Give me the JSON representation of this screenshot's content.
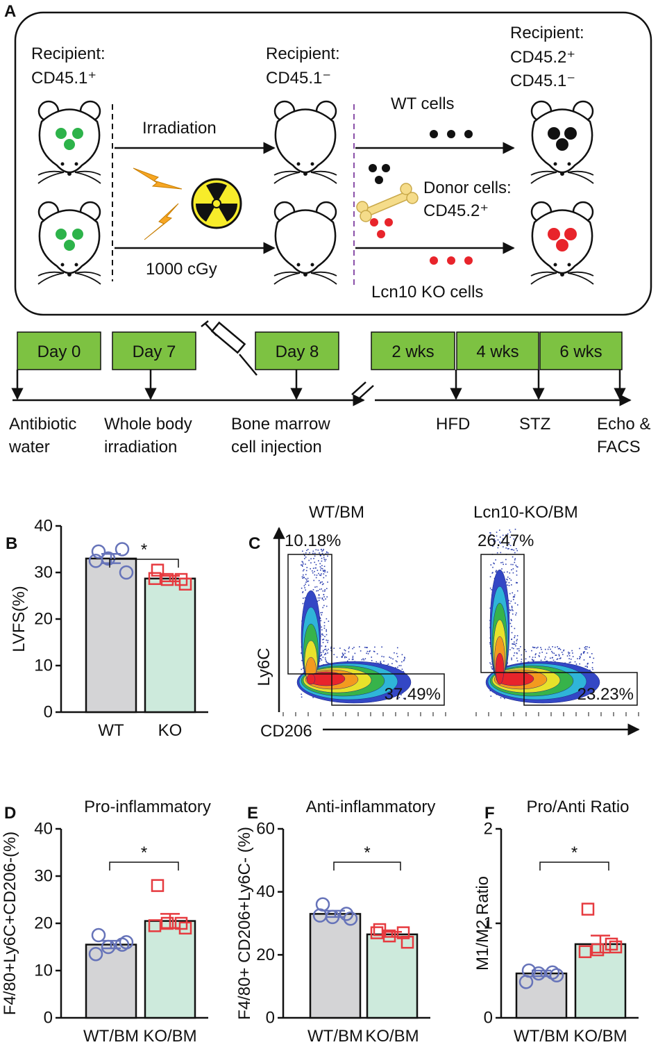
{
  "panel_labels": [
    "A",
    "B",
    "C",
    "D",
    "E",
    "F"
  ],
  "diagram": {
    "recipient_1": [
      "Recipient:",
      "CD45.1⁺"
    ],
    "recipient_2": [
      "Recipient:",
      "CD45.1⁻"
    ],
    "recipient_3": [
      "Recipient:",
      "CD45.2⁺",
      "CD45.1⁻"
    ],
    "irradiation": "Irradiation",
    "dose": "1000 cGy",
    "wt_cells": "WT cells",
    "donor_cells": [
      "Donor cells:",
      "CD45.2⁺"
    ],
    "ko_cells": "Lcn10 KO cells"
  },
  "timeline": {
    "steps": [
      "Day 0",
      "Day 7",
      "Day 8",
      "2 wks",
      "4 wks",
      "6 wks"
    ],
    "events": [
      [
        "Antibiotic",
        "water"
      ],
      [
        "Whole body",
        "irradiation"
      ],
      [
        "Bone marrow",
        "cell injection"
      ],
      [
        "HFD"
      ],
      [
        "STZ"
      ],
      [
        "Echo &",
        "FACS"
      ]
    ]
  },
  "flow": {
    "y_label": "Ly6C",
    "x_label": "CD206",
    "plots": [
      {
        "title": "WT/BM",
        "upper_gate": "10.18%",
        "lower_gate": "37.49%"
      },
      {
        "title": "Lcn10-KO/BM",
        "upper_gate": "26.47%",
        "lower_gate": "23.23%"
      }
    ]
  },
  "chart_data": [
    {
      "type": "bar",
      "ylabel": "LVFS(%)",
      "categories": [
        "WT",
        "KO"
      ],
      "values": [
        33,
        28.7
      ],
      "errors": [
        1.0,
        0.6
      ],
      "points": [
        [
          34.5,
          35,
          33,
          30,
          32.5
        ],
        [
          30.5,
          28.5,
          28.5,
          27.5,
          28.7
        ]
      ],
      "ylim": [
        0,
        40
      ],
      "yticks": [
        0,
        10,
        20,
        30,
        40
      ],
      "significance": "*",
      "colors": [
        "#d4d4d6",
        "#cdeadc"
      ],
      "point_colors": [
        "#6673b9",
        "#e63a3f"
      ],
      "markers": [
        "circle",
        "square"
      ]
    },
    {
      "type": "bar",
      "title": "Pro-inflammatory",
      "ylabel": "F4/80+Ly6C+CD206-(%)",
      "categories": [
        "WT/BM",
        "KO/BM"
      ],
      "values": [
        15.5,
        20.5
      ],
      "errors": [
        0.8,
        1.5
      ],
      "points": [
        [
          17.5,
          15.5,
          15,
          16,
          13.5
        ],
        [
          28,
          20,
          20,
          19,
          19.5
        ]
      ],
      "ylim": [
        0,
        40
      ],
      "yticks": [
        0,
        10,
        20,
        30,
        40
      ],
      "significance": "*",
      "colors": [
        "#d4d4d6",
        "#cdeadc"
      ],
      "point_colors": [
        "#6673b9",
        "#e63a3f"
      ],
      "markers": [
        "circle",
        "square"
      ]
    },
    {
      "type": "bar",
      "title": "Anti-inflammatory",
      "ylabel": "F4/80+ CD206+Ly6C- (%)",
      "categories": [
        "WT/BM",
        "KO/BM"
      ],
      "values": [
        33,
        26.5
      ],
      "errors": [
        1.0,
        0.8
      ],
      "points": [
        [
          36,
          33,
          32,
          31.5,
          32.5
        ],
        [
          28,
          27,
          26,
          24,
          27
        ]
      ],
      "ylim": [
        0,
        60
      ],
      "yticks": [
        0,
        20,
        40,
        60
      ],
      "significance": "*",
      "colors": [
        "#d4d4d6",
        "#cdeadc"
      ],
      "point_colors": [
        "#6673b9",
        "#e63a3f"
      ],
      "markers": [
        "circle",
        "square"
      ]
    },
    {
      "type": "bar",
      "title": "Pro/Anti Ratio",
      "ylabel": "M1/M2 Ratio",
      "categories": [
        "WT/BM",
        "KO/BM"
      ],
      "values": [
        0.47,
        0.78
      ],
      "errors": [
        0.03,
        0.09
      ],
      "points": [
        [
          0.5,
          0.48,
          0.47,
          0.45,
          0.38
        ],
        [
          1.15,
          0.78,
          0.72,
          0.75,
          0.7
        ]
      ],
      "ylim": [
        0,
        2
      ],
      "yticks": [
        0,
        1,
        2
      ],
      "significance": "*",
      "colors": [
        "#d4d4d6",
        "#cdeadc"
      ],
      "point_colors": [
        "#6673b9",
        "#e63a3f"
      ],
      "markers": [
        "circle",
        "square"
      ]
    }
  ]
}
